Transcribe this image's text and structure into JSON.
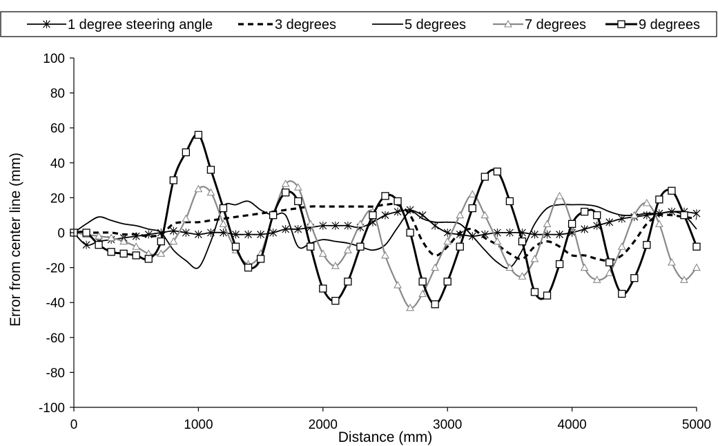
{
  "chart_data": {
    "type": "line",
    "xlabel": "Distance (mm)",
    "ylabel": "Error from center line (mm)",
    "xlim": [
      0,
      5000
    ],
    "ylim": [
      -100,
      100
    ],
    "xticks": [
      "0",
      "1000",
      "2000",
      "3000",
      "4000",
      "5000"
    ],
    "yticks": [
      "100",
      "80",
      "60",
      "40",
      "20",
      "0",
      "-20",
      "-40",
      "-60",
      "-80",
      "-100"
    ],
    "grid": false,
    "legend_position": "top",
    "series": [
      {
        "name": "1 degree steering angle",
        "color": "#000000",
        "dash": "solid",
        "marker": "x",
        "x": [
          0,
          100,
          200,
          300,
          400,
          500,
          600,
          700,
          800,
          900,
          1000,
          1100,
          1200,
          1300,
          1400,
          1500,
          1600,
          1700,
          1800,
          1900,
          2000,
          2100,
          2200,
          2300,
          2400,
          2500,
          2600,
          2700,
          2800,
          2900,
          3000,
          3100,
          3200,
          3300,
          3400,
          3500,
          3600,
          3700,
          3800,
          3900,
          4000,
          4100,
          4200,
          4300,
          4400,
          4500,
          4600,
          4700,
          4800,
          4900,
          5000
        ],
        "y": [
          0,
          -7,
          -5,
          -4,
          -3,
          -2,
          -1,
          0,
          1,
          0,
          -1,
          0,
          0,
          -1,
          -1,
          -1,
          0,
          2,
          2,
          3,
          4,
          4,
          4,
          3,
          6,
          10,
          12,
          13,
          10,
          4,
          0,
          -1,
          -2,
          -1,
          0,
          0,
          0,
          -1,
          -1,
          -1,
          0,
          2,
          4,
          6,
          8,
          9,
          10,
          11,
          12,
          12,
          11
        ]
      },
      {
        "name": "3 degrees",
        "color": "#000000",
        "dash": "dashed",
        "marker": "none",
        "x": [
          0,
          100,
          200,
          300,
          400,
          500,
          600,
          700,
          800,
          900,
          1000,
          1100,
          1200,
          1300,
          1400,
          1500,
          1600,
          1700,
          1800,
          1900,
          2000,
          2100,
          2200,
          2300,
          2400,
          2500,
          2600,
          2700,
          2800,
          2900,
          3000,
          3100,
          3200,
          3300,
          3400,
          3500,
          3600,
          3700,
          3800,
          3900,
          4000,
          4100,
          4200,
          4300,
          4400,
          4500,
          4600,
          4700,
          4800,
          4900,
          5000
        ],
        "y": [
          0,
          0,
          0,
          0,
          -1,
          -1,
          -2,
          -1,
          5,
          6,
          6,
          7,
          8,
          9,
          10,
          11,
          12,
          13,
          14,
          15,
          15,
          15,
          15,
          15,
          15,
          16,
          16,
          10,
          -5,
          -13,
          -8,
          0,
          2,
          -3,
          -7,
          -12,
          -15,
          -8,
          -5,
          -8,
          -13,
          -13,
          -15,
          -16,
          -13,
          -5,
          5,
          10,
          10,
          9,
          8
        ]
      },
      {
        "name": "5 degrees",
        "color": "#000000",
        "dash": "solid",
        "marker": "none",
        "x": [
          0,
          100,
          200,
          300,
          400,
          500,
          600,
          700,
          800,
          900,
          1000,
          1100,
          1200,
          1300,
          1400,
          1500,
          1600,
          1700,
          1800,
          1900,
          2000,
          2100,
          2200,
          2300,
          2400,
          2500,
          2600,
          2700,
          2800,
          2900,
          3000,
          3100,
          3200,
          3300,
          3400,
          3500,
          3600,
          3700,
          3800,
          3900,
          4000,
          4100,
          4200,
          4300,
          4400,
          4500,
          4600,
          4700,
          4800,
          4900,
          5000
        ],
        "y": [
          0,
          5,
          9,
          7,
          5,
          4,
          2,
          0,
          -10,
          -16,
          -20,
          -5,
          15,
          16,
          18,
          13,
          10,
          10,
          -8,
          -6,
          -4,
          -5,
          -6,
          -8,
          -10,
          -7,
          3,
          12,
          8,
          6,
          6,
          5,
          -2,
          -10,
          -17,
          -20,
          -10,
          5,
          14,
          16,
          16,
          16,
          15,
          12,
          10,
          10,
          11,
          11,
          12,
          10,
          2
        ]
      },
      {
        "name": "7 degrees",
        "color": "#888888",
        "dash": "solid",
        "marker": "triangle",
        "x": [
          0,
          100,
          200,
          300,
          400,
          500,
          600,
          700,
          800,
          900,
          1000,
          1100,
          1200,
          1300,
          1400,
          1500,
          1600,
          1700,
          1800,
          1900,
          2000,
          2100,
          2200,
          2300,
          2400,
          2500,
          2600,
          2700,
          2800,
          2900,
          3000,
          3100,
          3200,
          3300,
          3400,
          3500,
          3600,
          3700,
          3800,
          3900,
          4000,
          4100,
          4200,
          4300,
          4400,
          4500,
          4600,
          4700,
          4800,
          4900,
          5000
        ],
        "y": [
          0,
          -1,
          -2,
          -3,
          -5,
          -8,
          -12,
          -12,
          -5,
          8,
          25,
          23,
          5,
          -10,
          -18,
          -12,
          10,
          28,
          26,
          5,
          -12,
          -19,
          -10,
          5,
          12,
          -13,
          -30,
          -43,
          -35,
          -20,
          -5,
          10,
          22,
          10,
          -5,
          -20,
          -25,
          -15,
          5,
          21,
          5,
          -20,
          -27,
          -23,
          -8,
          10,
          17,
          5,
          -17,
          -27,
          -20
        ]
      },
      {
        "name": "9 degrees",
        "color": "#000000",
        "dash": "solid",
        "thick": true,
        "marker": "square",
        "x": [
          0,
          100,
          200,
          300,
          400,
          500,
          600,
          700,
          800,
          900,
          1000,
          1100,
          1200,
          1300,
          1400,
          1500,
          1600,
          1700,
          1800,
          1900,
          2000,
          2100,
          2200,
          2300,
          2400,
          2500,
          2600,
          2700,
          2800,
          2900,
          3000,
          3100,
          3200,
          3300,
          3400,
          3500,
          3600,
          3700,
          3800,
          3900,
          4000,
          4100,
          4200,
          4300,
          4400,
          4500,
          4600,
          4700,
          4800,
          4900,
          5000
        ],
        "y": [
          0,
          0,
          -7,
          -11,
          -12,
          -13,
          -15,
          -5,
          30,
          46,
          56,
          36,
          14,
          -8,
          -20,
          -15,
          10,
          23,
          18,
          -8,
          -32,
          -39,
          -28,
          -8,
          10,
          21,
          18,
          0,
          -28,
          -41,
          -28,
          -8,
          14,
          32,
          35,
          18,
          -5,
          -34,
          -36,
          -18,
          5,
          12,
          10,
          -17,
          -35,
          -26,
          -7,
          19,
          24,
          10,
          -8
        ]
      }
    ]
  }
}
